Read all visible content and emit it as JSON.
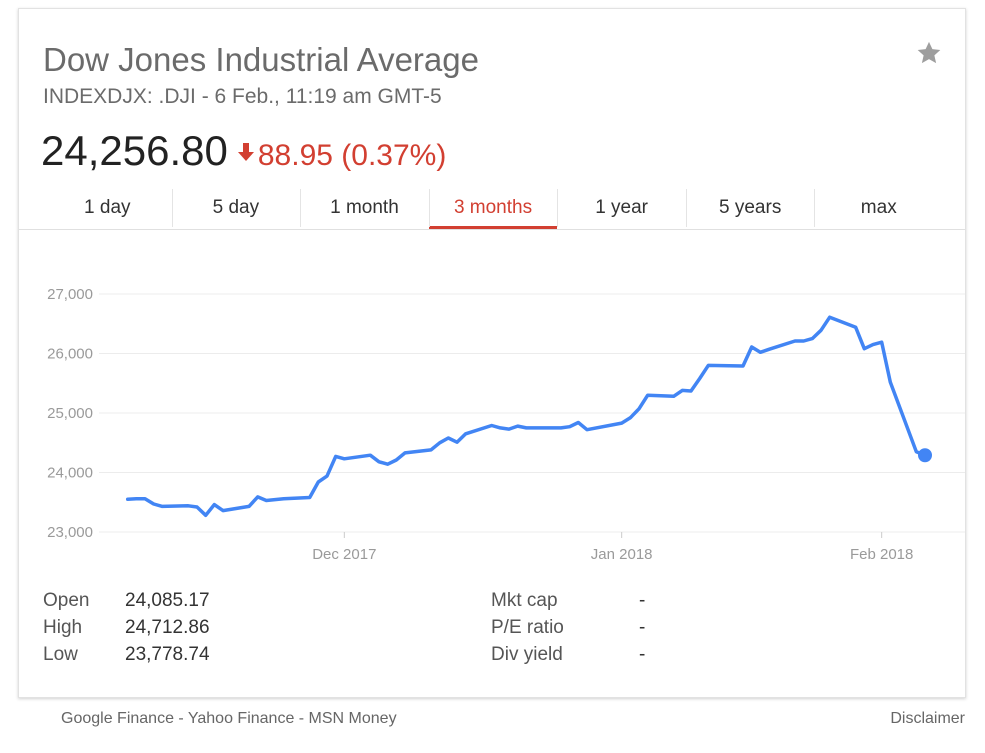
{
  "header": {
    "title": "Dow Jones Industrial Average",
    "subtitle": "INDEXDJX: .DJI - 6 Feb., 11:19 am GMT-5",
    "price": "24,256.80",
    "change": "88.95 (0.37%)",
    "change_direction": "down",
    "change_color": "#d23f31",
    "star_icon": "star-icon"
  },
  "tabs": [
    {
      "label": "1 day",
      "active": false
    },
    {
      "label": "5 day",
      "active": false
    },
    {
      "label": "1 month",
      "active": false
    },
    {
      "label": "3 months",
      "active": true
    },
    {
      "label": "1 year",
      "active": false
    },
    {
      "label": "5 years",
      "active": false
    },
    {
      "label": "max",
      "active": false
    }
  ],
  "chart_data": {
    "type": "line",
    "title": "",
    "xlabel": "",
    "ylabel": "",
    "line_color": "#4285f4",
    "grid": true,
    "ylim": [
      23000,
      27000
    ],
    "yticks": [
      {
        "label": "27,000",
        "value": 27000
      },
      {
        "label": "26,000",
        "value": 26000
      },
      {
        "label": "25,000",
        "value": 25000
      },
      {
        "label": "24,000",
        "value": 24000
      },
      {
        "label": "23,000",
        "value": 23000
      }
    ],
    "xticks": [
      {
        "label": "Dec 2017",
        "x": "2017-12-01"
      },
      {
        "label": "Jan 2018",
        "x": "2018-01-02"
      },
      {
        "label": "Feb 2018",
        "x": "2018-02-01"
      }
    ],
    "xlim": [
      "2017-11-05",
      "2018-02-06"
    ],
    "x": [
      "2017-11-06",
      "2017-11-07",
      "2017-11-08",
      "2017-11-09",
      "2017-11-10",
      "2017-11-13",
      "2017-11-14",
      "2017-11-15",
      "2017-11-16",
      "2017-11-17",
      "2017-11-20",
      "2017-11-21",
      "2017-11-22",
      "2017-11-24",
      "2017-11-27",
      "2017-11-28",
      "2017-11-29",
      "2017-11-30",
      "2017-12-01",
      "2017-12-04",
      "2017-12-05",
      "2017-12-06",
      "2017-12-07",
      "2017-12-08",
      "2017-12-11",
      "2017-12-12",
      "2017-12-13",
      "2017-12-14",
      "2017-12-15",
      "2017-12-18",
      "2017-12-19",
      "2017-12-20",
      "2017-12-21",
      "2017-12-22",
      "2017-12-26",
      "2017-12-27",
      "2017-12-28",
      "2017-12-29",
      "2018-01-02",
      "2018-01-03",
      "2018-01-04",
      "2018-01-05",
      "2018-01-08",
      "2018-01-09",
      "2018-01-10",
      "2018-01-11",
      "2018-01-12",
      "2018-01-16",
      "2018-01-17",
      "2018-01-18",
      "2018-01-19",
      "2018-01-22",
      "2018-01-23",
      "2018-01-24",
      "2018-01-25",
      "2018-01-26",
      "2018-01-29",
      "2018-01-30",
      "2018-01-31",
      "2018-02-01",
      "2018-02-02",
      "2018-02-05",
      "2018-02-06"
    ],
    "series": [
      {
        "values": [
          23550,
          23560,
          23560,
          23470,
          23430,
          23440,
          23420,
          23280,
          23460,
          23360,
          23430,
          23590,
          23530,
          23560,
          23580,
          23840,
          23940,
          24270,
          24230,
          24290,
          24180,
          24140,
          24210,
          24330,
          24380,
          24500,
          24580,
          24510,
          24650,
          24790,
          24750,
          24730,
          24780,
          24750,
          24750,
          24770,
          24840,
          24720,
          24830,
          24920,
          25070,
          25300,
          25280,
          25380,
          25370,
          25580,
          25800,
          25790,
          26110,
          26020,
          26070,
          26210,
          26210,
          26250,
          26390,
          26610,
          26440,
          26080,
          26150,
          26190,
          25520,
          24350,
          24290
        ]
      }
    ],
    "last_point": {
      "x": "2018-02-06",
      "y": 24290
    }
  },
  "stats": {
    "left": [
      {
        "label": "Open",
        "value": "24,085.17"
      },
      {
        "label": "High",
        "value": "24,712.86"
      },
      {
        "label": "Low",
        "value": "23,778.74"
      }
    ],
    "right": [
      {
        "label": "Mkt cap",
        "value": "-"
      },
      {
        "label": "P/E ratio",
        "value": "-"
      },
      {
        "label": "Div yield",
        "value": "-"
      }
    ]
  },
  "footer": {
    "sources": "Google Finance - Yahoo Finance - MSN Money",
    "disclaimer": "Disclaimer"
  }
}
